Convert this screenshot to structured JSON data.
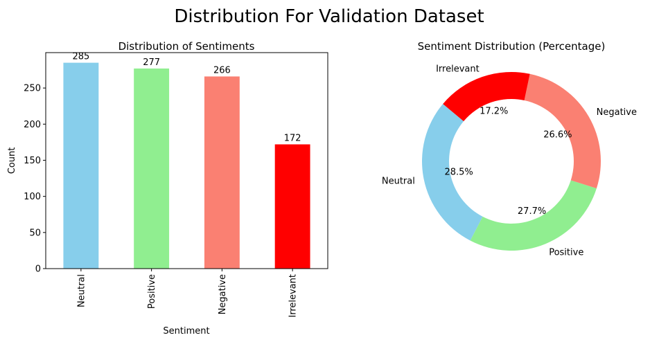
{
  "figure": {
    "suptitle": "Distribution For Validation Dataset"
  },
  "chart_data": [
    {
      "type": "bar",
      "title": "Distribution of Sentiments",
      "xlabel": "Sentiment",
      "ylabel": "Count",
      "categories": [
        "Neutral",
        "Positive",
        "Negative",
        "Irrelevant"
      ],
      "values": [
        285,
        277,
        266,
        172
      ],
      "data_labels": [
        "285",
        "277",
        "266",
        "172"
      ],
      "colors": [
        "#87CEEB",
        "#90EE90",
        "#FA8072",
        "#FF0000"
      ],
      "ylim": [
        0,
        299
      ],
      "yticks": [
        0,
        50,
        100,
        150,
        200,
        250
      ],
      "ytick_labels": [
        "0",
        "50",
        "100",
        "150",
        "200",
        "250"
      ],
      "grid": false
    },
    {
      "type": "pie",
      "style": "donut",
      "title": "Sentiment Distribution (Percentage)",
      "labels": [
        "Neutral",
        "Positive",
        "Negative",
        "Irrelevant"
      ],
      "values": [
        28.5,
        27.7,
        26.6,
        17.2
      ],
      "pct_labels": [
        "28.5%",
        "27.7%",
        "26.6%",
        "17.2%"
      ],
      "colors": [
        "#87CEEB",
        "#90EE90",
        "#FA8072",
        "#FF0000"
      ],
      "start_angle_deg": 140
    }
  ]
}
